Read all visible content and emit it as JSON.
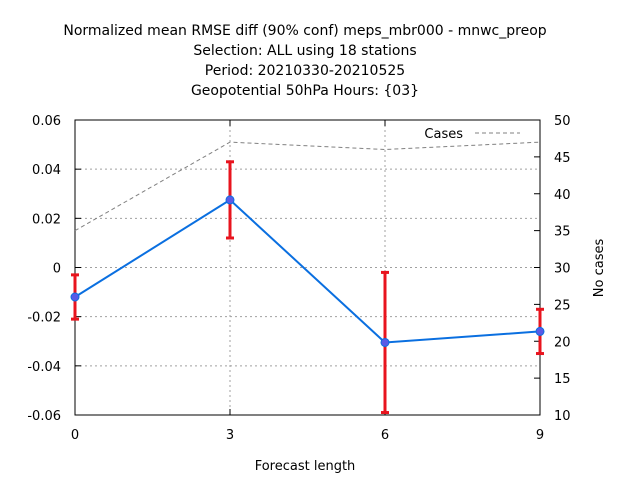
{
  "chart_data": {
    "type": "line",
    "title_lines": [
      "Normalized mean RMSE diff (90% conf) meps_mbr000 - mnwc_preop",
      "Selection: ALL using    18 stations",
      "Period: 20210330-20210525",
      "Geopotential 50hPa   Hours: {03}"
    ],
    "xlabel": "Forecast length",
    "ylabel": "",
    "y2label": "No cases",
    "x": [
      0,
      3,
      6,
      9
    ],
    "xlim": [
      0,
      9
    ],
    "ylim": [
      -0.06,
      0.06
    ],
    "y2lim": [
      10,
      50
    ],
    "xticks": [
      "0",
      "3",
      "6",
      "9"
    ],
    "yticks": [
      "-0.06",
      "-0.04",
      "-0.02",
      "0",
      "0.02",
      "0.04",
      "0.06"
    ],
    "y2ticks": [
      "10",
      "15",
      "20",
      "25",
      "30",
      "35",
      "40",
      "45",
      "50"
    ],
    "grid": true,
    "legend_position": "top-right",
    "series": [
      {
        "name": "",
        "axis": "y",
        "color": "#0a6fe0",
        "values": [
          -0.012,
          0.0275,
          -0.0305,
          -0.026
        ],
        "err_low": [
          -0.021,
          0.012,
          -0.059,
          -0.035
        ],
        "err_high": [
          -0.003,
          0.043,
          -0.002,
          -0.017
        ],
        "err_color": "#e8141e"
      },
      {
        "name": "Cases",
        "axis": "y2",
        "color": "#808080",
        "dashed": true,
        "values": [
          35,
          47,
          46,
          47
        ]
      }
    ]
  }
}
